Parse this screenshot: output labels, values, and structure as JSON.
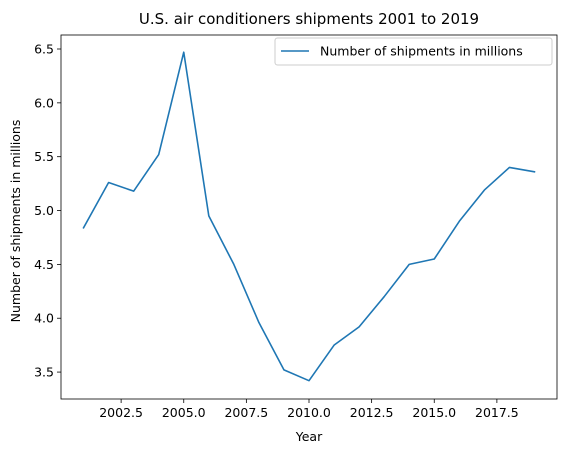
{
  "chart_data": {
    "type": "line",
    "title": "U.S. air conditioners shipments 2001 to 2019",
    "xlabel": "Year",
    "ylabel": "Number of shipments in millions",
    "xlim": [
      2000.1,
      2019.9
    ],
    "ylim": [
      3.25,
      6.63
    ],
    "xticks": [
      2002.5,
      2005.0,
      2007.5,
      2010.0,
      2012.5,
      2015.0,
      2017.5
    ],
    "xtick_labels": [
      "2002.5",
      "2005.0",
      "2007.5",
      "2010.0",
      "2012.5",
      "2015.0",
      "2017.5"
    ],
    "yticks": [
      3.5,
      4.0,
      4.5,
      5.0,
      5.5,
      6.0,
      6.5
    ],
    "ytick_labels": [
      "3.5",
      "4.0",
      "4.5",
      "5.0",
      "5.5",
      "6.0",
      "6.5"
    ],
    "grid": false,
    "legend_position": "top-right",
    "series": [
      {
        "name": "Number of shipments in millions",
        "color": "#1f77b4",
        "x": [
          2001,
          2002,
          2003,
          2004,
          2005,
          2006,
          2007,
          2008,
          2009,
          2010,
          2011,
          2012,
          2013,
          2014,
          2015,
          2016,
          2017,
          2018,
          2019
        ],
        "y": [
          4.84,
          5.26,
          5.18,
          5.52,
          6.47,
          4.95,
          4.5,
          3.96,
          3.52,
          3.42,
          3.75,
          3.92,
          4.2,
          4.5,
          4.55,
          4.9,
          5.19,
          5.4,
          5.36
        ]
      }
    ]
  }
}
